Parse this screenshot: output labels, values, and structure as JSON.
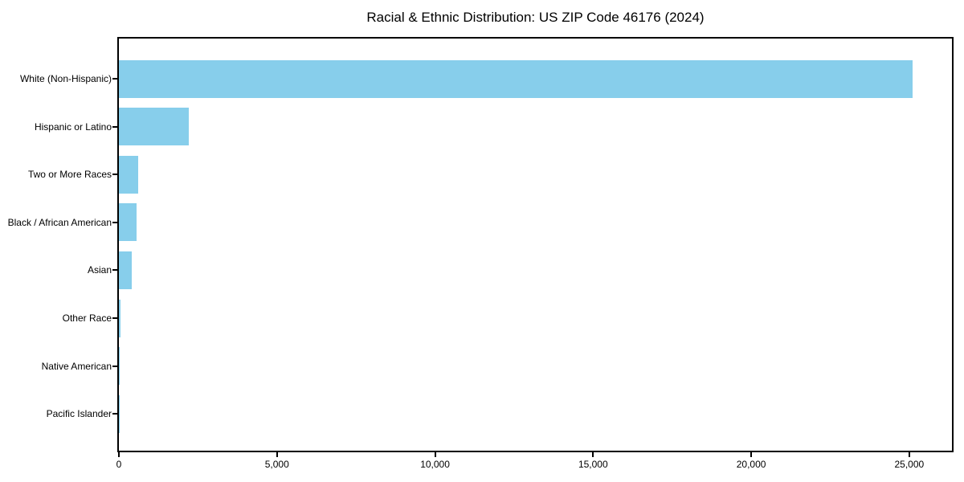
{
  "chart_data": {
    "type": "bar",
    "orientation": "horizontal",
    "title": "Racial & Ethnic Distribution: US ZIP Code 46176 (2024)",
    "categories": [
      "White (Non-Hispanic)",
      "Hispanic or Latino",
      "Two or More Races",
      "Black / African American",
      "Asian",
      "Other Race",
      "Native American",
      "Pacific Islander"
    ],
    "values": [
      25100,
      2200,
      600,
      570,
      400,
      50,
      20,
      10
    ],
    "xlabel": "",
    "ylabel": "",
    "xlim": [
      0,
      26350
    ],
    "x_ticks": [
      0,
      5000,
      10000,
      15000,
      20000,
      25000
    ],
    "x_tick_labels": [
      "0",
      "5,000",
      "10,000",
      "15,000",
      "20,000",
      "25,000"
    ],
    "bar_color": "#87CEEB",
    "background_color": "#ffffff",
    "axis_color": "#000000",
    "text_color": "#000000",
    "grid": false,
    "legend": null
  }
}
